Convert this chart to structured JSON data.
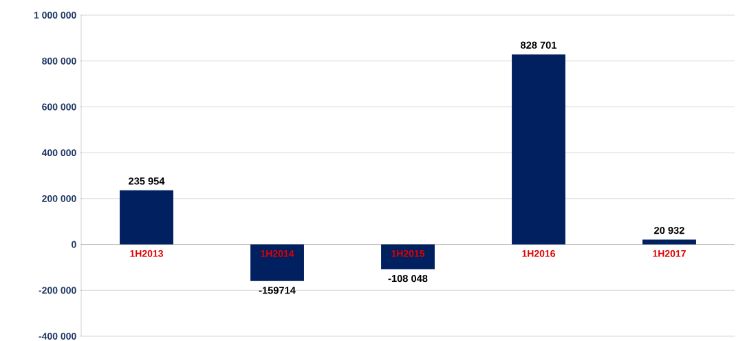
{
  "chart_data": {
    "type": "bar",
    "categories": [
      "1H2013",
      "1H2014",
      "1H2015",
      "1H2016",
      "1H2017"
    ],
    "values": [
      235954,
      -159714,
      -108048,
      828701,
      20932
    ],
    "value_labels": [
      "235 954",
      "-159714",
      "-108 048",
      "828 701",
      "20 932"
    ],
    "color": "#002060",
    "ylim": [
      -400000,
      1000000
    ],
    "yticks": [
      {
        "value": -400000,
        "label": "-400 000"
      },
      {
        "value": -200000,
        "label": "-200 000"
      },
      {
        "value": 0,
        "label": "0"
      },
      {
        "value": 200000,
        "label": "200 000"
      },
      {
        "value": 400000,
        "label": "400 000"
      },
      {
        "value": 600000,
        "label": "600 000"
      },
      {
        "value": 800000,
        "label": "800 000"
      },
      {
        "value": 1000000,
        "label": "1 000 000"
      }
    ],
    "grid": "y"
  }
}
